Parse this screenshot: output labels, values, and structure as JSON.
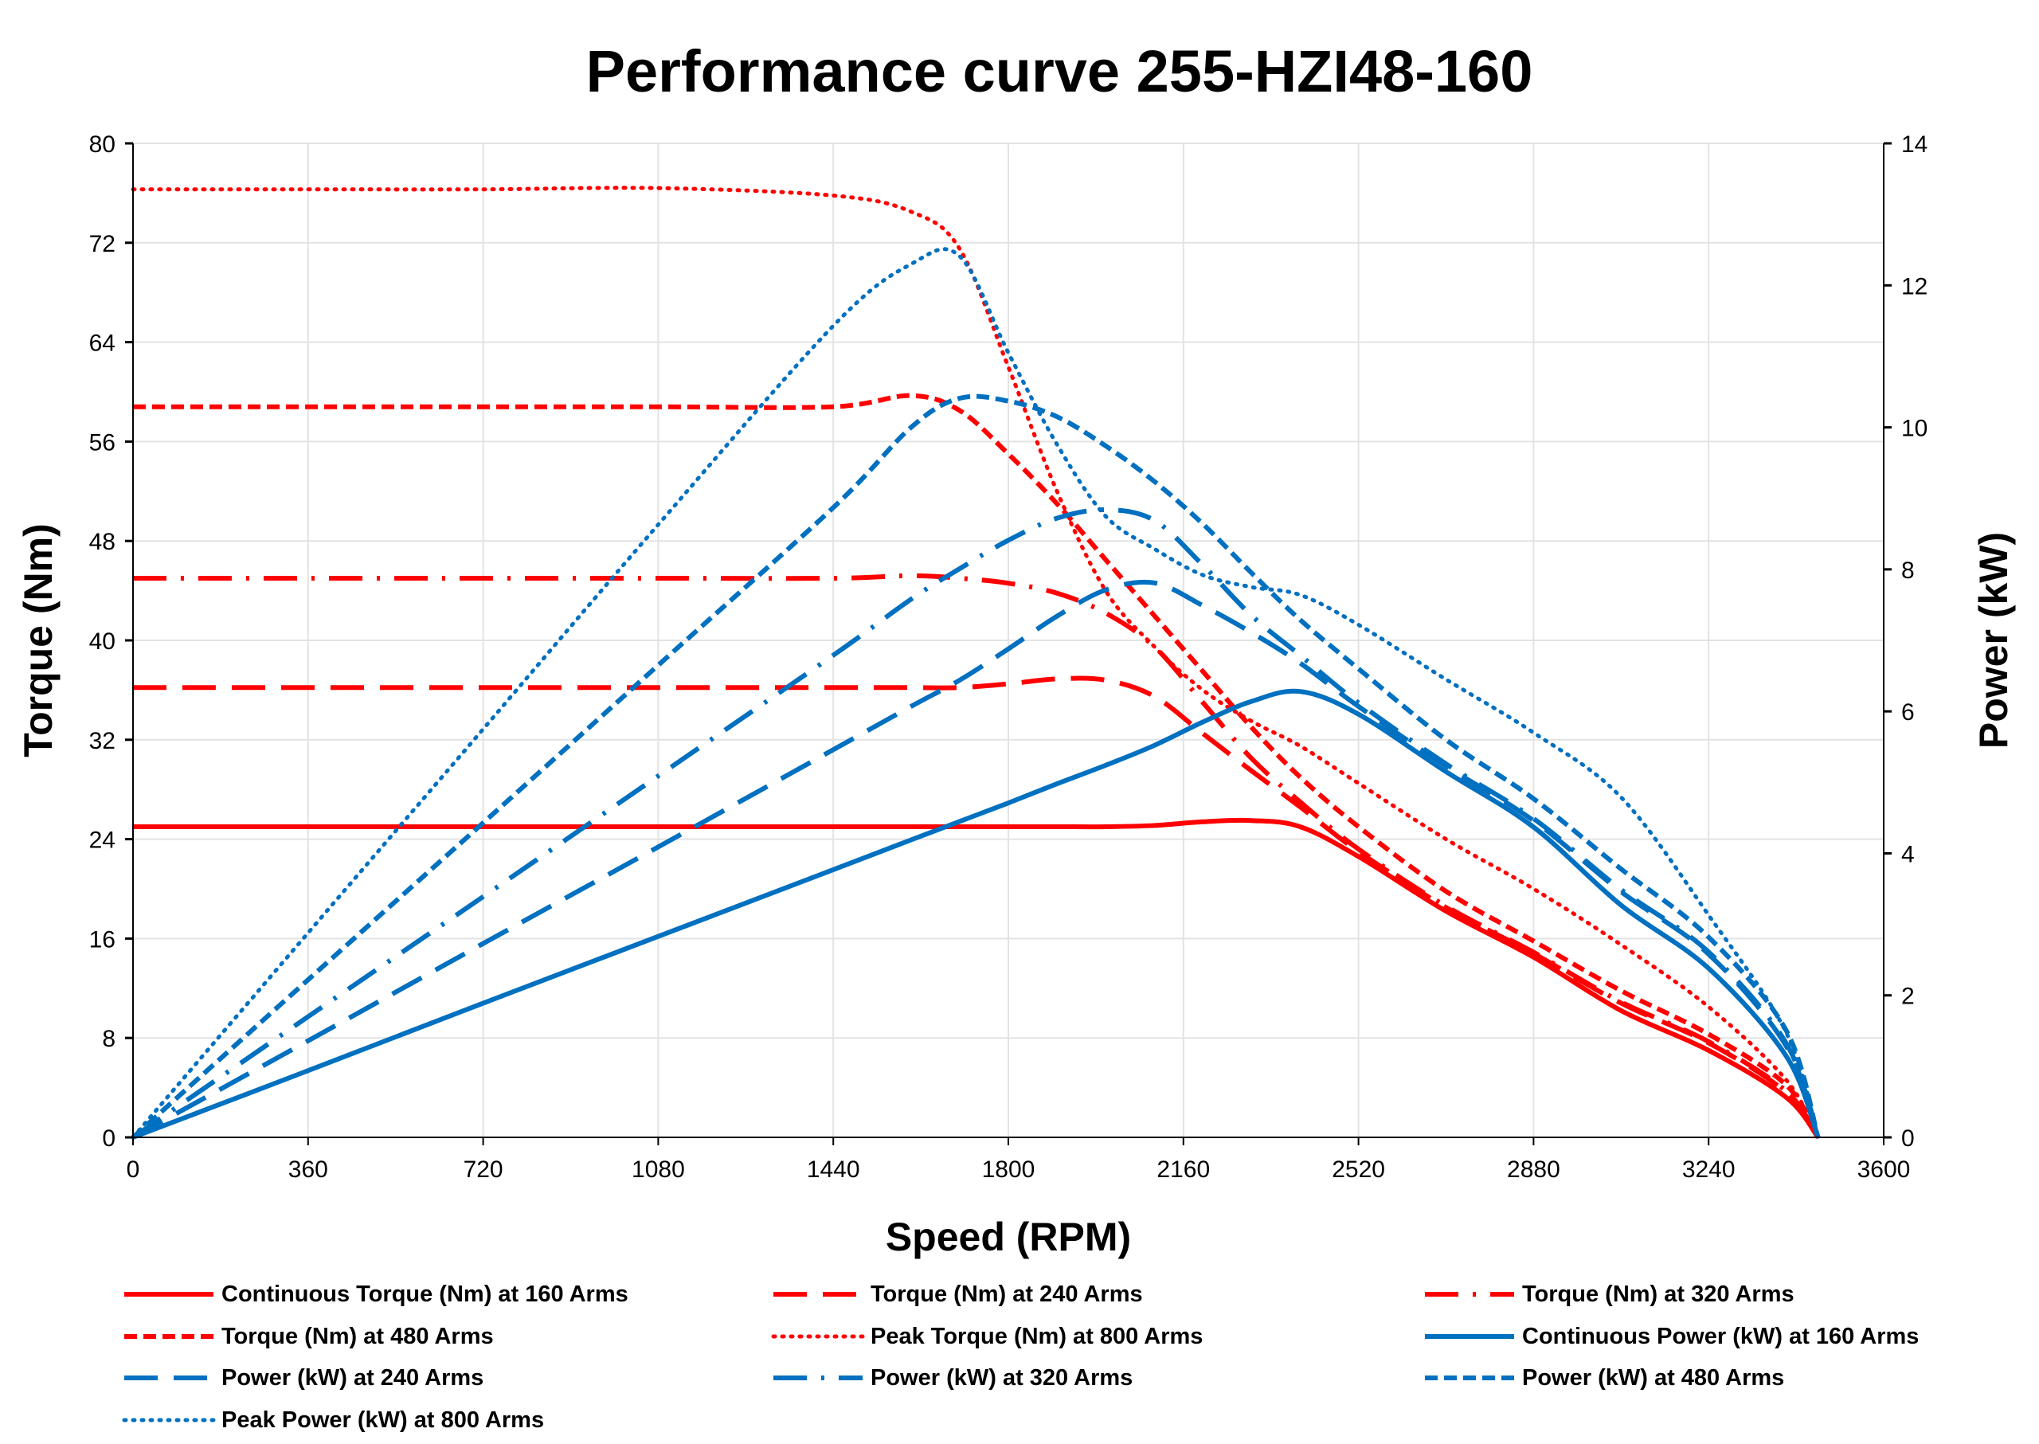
{
  "chart_data": {
    "type": "line",
    "title": "Performance curve 255-HZI48-160",
    "xlabel": "Speed (RPM)",
    "ylabel": "Torque (Nm)",
    "y2label": "Power (kW)",
    "xlim": [
      0,
      3600
    ],
    "ylim": [
      0,
      80
    ],
    "y2lim": [
      0,
      14
    ],
    "xticks": [
      0,
      360,
      720,
      1080,
      1440,
      1800,
      2160,
      2520,
      2880,
      3240,
      3600
    ],
    "yticks": [
      0,
      8,
      16,
      24,
      32,
      40,
      48,
      56,
      64,
      72,
      80
    ],
    "y2ticks": [
      0,
      2,
      4,
      6,
      8,
      10,
      12,
      14
    ],
    "grid": true,
    "legend_position": "bottom",
    "x": [
      0,
      360,
      720,
      1080,
      1440,
      1600,
      1700,
      1800,
      1900,
      2000,
      2100,
      2200,
      2300,
      2400,
      2520,
      2700,
      2880,
      3060,
      3240,
      3400,
      3465
    ],
    "series": [
      {
        "name": "Continuous Torque (Nm) at 160  Arms",
        "axis": "left",
        "color": "#ff0000",
        "style": "solid",
        "values": [
          25,
          25,
          25,
          25,
          25,
          25,
          25,
          25,
          25,
          25,
          25.1,
          25.4,
          25.5,
          25.0,
          22.6,
          18.2,
          14.5,
          10.2,
          7.0,
          3.2,
          0
        ]
      },
      {
        "name": "Torque (Nm) at 240 Arms",
        "axis": "left",
        "color": "#ff0000",
        "style": "longdash",
        "values": [
          36.2,
          36.2,
          36.2,
          36.2,
          36.2,
          36.2,
          36.2,
          36.5,
          36.9,
          36.8,
          35.5,
          32.5,
          29.5,
          26.6,
          23,
          18.5,
          14.8,
          10.8,
          7.6,
          3.6,
          0
        ]
      },
      {
        "name": "Torque (Nm) at 320 Arms",
        "axis": "left",
        "color": "#ff0000",
        "style": "dashdot",
        "values": [
          45,
          45,
          45,
          45,
          45,
          45.2,
          45,
          44.6,
          43.8,
          42.2,
          39.5,
          35,
          30.5,
          27,
          23.2,
          18.6,
          14.9,
          10.9,
          7.7,
          3.7,
          0
        ]
      },
      {
        "name": "Torque (Nm) at 480 Arms",
        "axis": "left",
        "color": "#ff0000",
        "style": "shortdash",
        "values": [
          58.8,
          58.8,
          58.8,
          58.8,
          58.8,
          59.7,
          58.5,
          55,
          51,
          46.5,
          42,
          37.5,
          33,
          29,
          25,
          19.8,
          15.8,
          11.8,
          8.3,
          4.2,
          0
        ]
      },
      {
        "name": "Peak Torque (Nm) at 800 Arms",
        "axis": "left",
        "color": "#ff0000",
        "style": "dotted",
        "values": [
          76.3,
          76.3,
          76.3,
          76.4,
          75.8,
          74.5,
          71.5,
          62,
          52,
          44,
          39.5,
          36,
          33.5,
          31.5,
          28.5,
          24,
          20,
          15.5,
          10.5,
          4.6,
          0
        ]
      },
      {
        "name": "Continuous Power (kW) at 160 Arms",
        "axis": "right",
        "color": "#0070c0",
        "style": "solid",
        "values": [
          0,
          0.94,
          1.89,
          2.83,
          3.77,
          4.19,
          4.45,
          4.71,
          4.98,
          5.24,
          5.52,
          5.85,
          6.14,
          6.28,
          5.96,
          5.15,
          4.37,
          3.27,
          2.38,
          1.14,
          0
        ]
      },
      {
        "name": "Power (kW) at 240 Arms",
        "axis": "right",
        "color": "#0070c0",
        "style": "longdash",
        "values": [
          0,
          1.36,
          2.73,
          4.09,
          5.46,
          6.07,
          6.44,
          6.88,
          7.34,
          7.71,
          7.81,
          7.49,
          7.11,
          6.68,
          6.07,
          5.23,
          4.46,
          3.46,
          2.58,
          1.28,
          0
        ]
      },
      {
        "name": "Power (kW) at 320 Arms",
        "axis": "right",
        "color": "#0070c0",
        "style": "dashdot",
        "values": [
          0,
          1.7,
          3.39,
          5.09,
          6.79,
          7.58,
          8.01,
          8.41,
          8.72,
          8.84,
          8.69,
          8.06,
          7.35,
          6.79,
          6.12,
          5.26,
          4.49,
          3.49,
          2.61,
          1.32,
          0
        ]
      },
      {
        "name": "Power (kW) at 480 Arms",
        "axis": "right",
        "color": "#0070c0",
        "style": "shortdash",
        "values": [
          0,
          2.22,
          4.43,
          6.65,
          8.87,
          10.0,
          10.41,
          10.37,
          10.15,
          9.74,
          9.24,
          8.64,
          7.95,
          7.29,
          6.6,
          5.6,
          4.77,
          3.78,
          2.82,
          1.5,
          0
        ]
      },
      {
        "name": "Peak Power (kW) at 800 Arms",
        "axis": "right",
        "color": "#0070c0",
        "style": "dotted",
        "values": [
          0,
          2.88,
          5.75,
          8.63,
          11.43,
          12.3,
          12.41,
          11.05,
          9.76,
          8.75,
          8.29,
          7.92,
          7.75,
          7.64,
          7.22,
          6.45,
          5.7,
          4.79,
          3.13,
          1.47,
          0
        ]
      }
    ]
  }
}
